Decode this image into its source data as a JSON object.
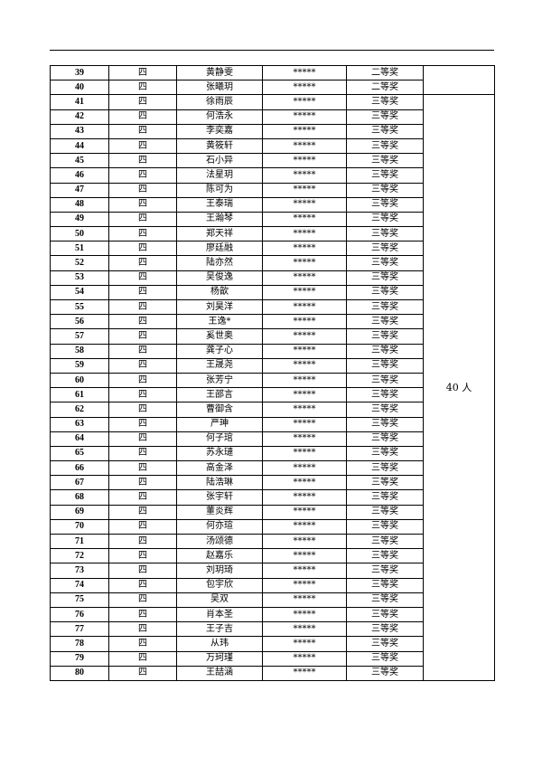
{
  "grade": "四",
  "score_mask": "*****",
  "group_note_top": "",
  "group_note": "40 人",
  "rows": [
    {
      "no": "39",
      "name": "黄静雯",
      "award": "二等奖"
    },
    {
      "no": "40",
      "name": "张曦玥",
      "award": "二等奖"
    },
    {
      "no": "41",
      "name": "徐雨辰",
      "award": "三等奖"
    },
    {
      "no": "42",
      "name": "何浩永",
      "award": "三等奖"
    },
    {
      "no": "43",
      "name": "李奕嘉",
      "award": "三等奖"
    },
    {
      "no": "44",
      "name": "黄筱轩",
      "award": "三等奖"
    },
    {
      "no": "45",
      "name": "石小异",
      "award": "三等奖"
    },
    {
      "no": "46",
      "name": "法星玥",
      "award": "三等奖"
    },
    {
      "no": "47",
      "name": "陈可为",
      "award": "三等奖"
    },
    {
      "no": "48",
      "name": "王泰瑞",
      "award": "三等奖"
    },
    {
      "no": "49",
      "name": "王瀚琴",
      "award": "三等奖"
    },
    {
      "no": "50",
      "name": "郑天祥",
      "award": "三等奖"
    },
    {
      "no": "51",
      "name": "廖廷融",
      "award": "三等奖"
    },
    {
      "no": "52",
      "name": "陆亦然",
      "award": "三等奖"
    },
    {
      "no": "53",
      "name": "吴俊逸",
      "award": "三等奖"
    },
    {
      "no": "54",
      "name": "杨歆",
      "award": "三等奖"
    },
    {
      "no": "55",
      "name": "刘昊洋",
      "award": "三等奖"
    },
    {
      "no": "56",
      "name": "王逸*",
      "award": "三等奖"
    },
    {
      "no": "57",
      "name": "奚世奥",
      "award": "三等奖"
    },
    {
      "no": "58",
      "name": "龚子心",
      "award": "三等奖"
    },
    {
      "no": "59",
      "name": "王晟尧",
      "award": "三等奖"
    },
    {
      "no": "60",
      "name": "张芳宁",
      "award": "三等奖"
    },
    {
      "no": "61",
      "name": "王邵言",
      "award": "三等奖"
    },
    {
      "no": "62",
      "name": "曹御含",
      "award": "三等奖"
    },
    {
      "no": "63",
      "name": "严珅",
      "award": "三等奖"
    },
    {
      "no": "64",
      "name": "何子琯",
      "award": "三等奖"
    },
    {
      "no": "65",
      "name": "苏永璉",
      "award": "三等奖"
    },
    {
      "no": "66",
      "name": "高金泽",
      "award": "三等奖"
    },
    {
      "no": "67",
      "name": "陆浩琳",
      "award": "三等奖"
    },
    {
      "no": "68",
      "name": "张宇轩",
      "award": "三等奖"
    },
    {
      "no": "69",
      "name": "董炎辉",
      "award": "三等奖"
    },
    {
      "no": "70",
      "name": "何亦瑄",
      "award": "三等奖"
    },
    {
      "no": "71",
      "name": "汤颂德",
      "award": "三等奖"
    },
    {
      "no": "72",
      "name": "赵嘉乐",
      "award": "三等奖"
    },
    {
      "no": "73",
      "name": "刘玥琦",
      "award": "三等奖"
    },
    {
      "no": "74",
      "name": "包宇欣",
      "award": "三等奖"
    },
    {
      "no": "75",
      "name": "吴双",
      "award": "三等奖"
    },
    {
      "no": "76",
      "name": "肖本圣",
      "award": "三等奖"
    },
    {
      "no": "77",
      "name": "王子吉",
      "award": "三等奖"
    },
    {
      "no": "78",
      "name": "从玮",
      "award": "三等奖"
    },
    {
      "no": "79",
      "name": "万珂瑾",
      "award": "三等奖"
    },
    {
      "no": "80",
      "name": "王喆涵",
      "award": "三等奖"
    }
  ]
}
